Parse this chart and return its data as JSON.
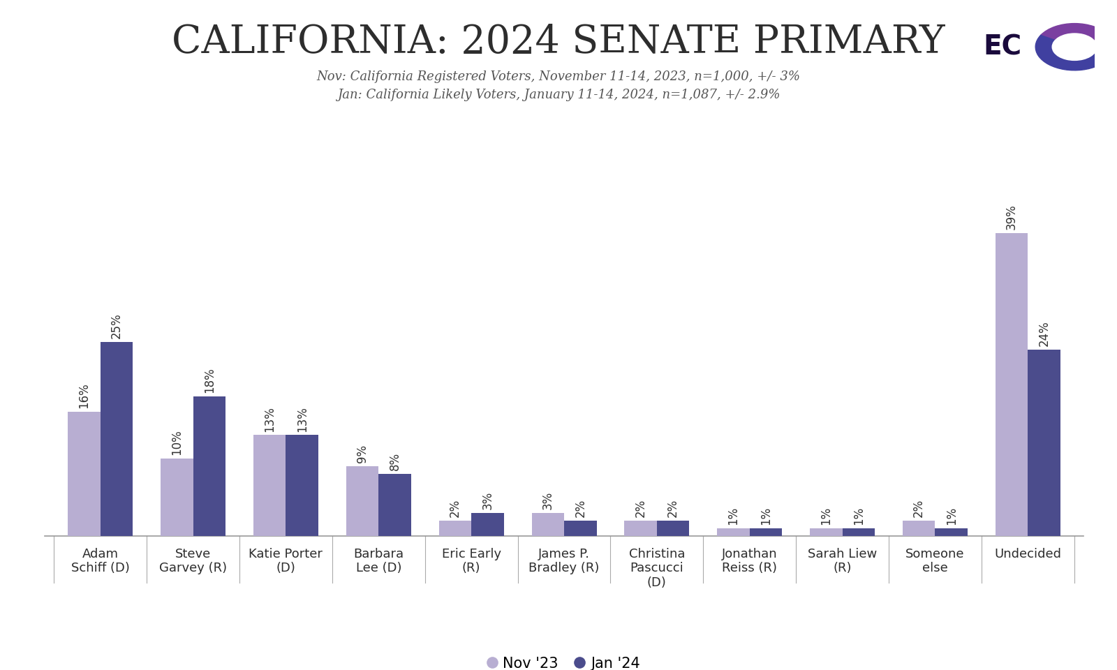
{
  "title": "CALIFORNIA: 2024 SENATE PRIMARY",
  "subtitle_line1": "Nov: California Registered Voters, November 11-14, 2023, n=1,000, +/- 3%",
  "subtitle_line2": "Jan: California Likely Voters, January 11-14, 2024, n=1,087, +/- 2.9%",
  "categories": [
    "Adam\nSchiff (D)",
    "Steve\nGarvey (R)",
    "Katie Porter\n(D)",
    "Barbara\nLee (D)",
    "Eric Early\n(R)",
    "James P.\nBradley (R)",
    "Christina\nPascucci\n(D)",
    "Jonathan\nReiss (R)",
    "Sarah Liew\n(R)",
    "Someone\nelse",
    "Undecided"
  ],
  "nov23_values": [
    16,
    10,
    13,
    9,
    2,
    3,
    2,
    1,
    1,
    2,
    39
  ],
  "jan24_values": [
    25,
    18,
    13,
    8,
    3,
    2,
    2,
    1,
    1,
    1,
    24
  ],
  "nov23_color": "#b8aed2",
  "jan24_color": "#4b4c8c",
  "background_color": "#ffffff",
  "title_color": "#2d2d2d",
  "subtitle_color": "#555555",
  "bar_width": 0.35,
  "legend_nov": "Nov '23",
  "legend_jan": "Jan '24",
  "label_fontsize": 12,
  "tick_fontsize": 13,
  "title_fontsize": 40,
  "subtitle_fontsize": 13
}
